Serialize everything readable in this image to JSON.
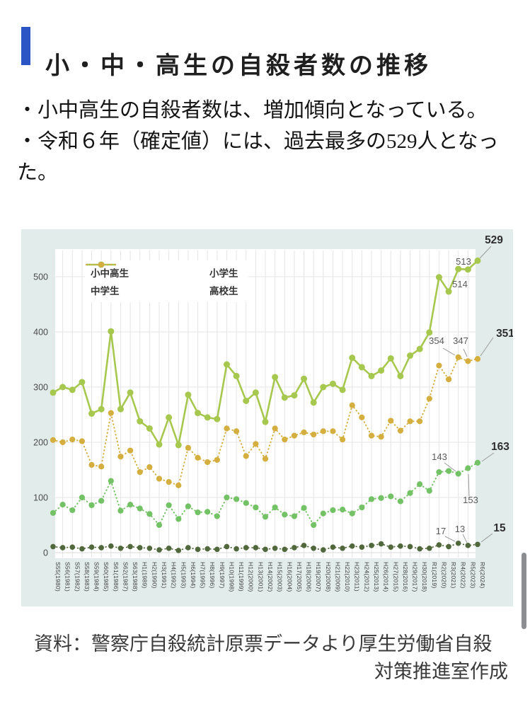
{
  "header": {
    "title": "小・中・高生の自殺者数の推移",
    "accent_color": "#2b54c5"
  },
  "summary": {
    "bullets": [
      "・小中高生の自殺者数は、増加傾向となっている。",
      "・令和６年（確定値）には、過去最多の529人となった。"
    ]
  },
  "source": {
    "line1": "資料：警察庁自殺統計原票データより厚生労働省自殺",
    "line2": "対策推進室作成"
  },
  "chart_data": {
    "type": "line",
    "panel_background": "#e2edeb",
    "plot_background": "#ffffff",
    "grid": true,
    "legend_position": "top-left",
    "ylim": [
      0,
      560
    ],
    "y_ticks": [
      0,
      100,
      200,
      300,
      400,
      500
    ],
    "x_labels": [
      "S55(1980)",
      "S56(1981)",
      "S57(1982)",
      "S58(1983)",
      "S59(1984)",
      "S60(1985)",
      "S61(1986)",
      "S62(1987)",
      "S63(1988)",
      "H1(1989)",
      "H2(1990)",
      "H3(1991)",
      "H4(1992)",
      "H5(1993)",
      "H6(1994)",
      "H7(1995)",
      "H8(1996)",
      "H9(1997)",
      "H10(1998)",
      "H11(1999)",
      "H12(2000)",
      "H13(2001)",
      "H14(2002)",
      "H15(2003)",
      "H16(2004)",
      "H17(2005)",
      "H18(2006)",
      "H19(2007)",
      "H20(2008)",
      "H21(2009)",
      "H22(2010)",
      "H23(2011)",
      "H24(2012)",
      "H25(2013)",
      "H26(2014)",
      "H27(2015)",
      "H28(2016)",
      "H29(2017)",
      "H30(2018)",
      "R1(2019)",
      "R2(2020)",
      "R3(2021)",
      "R4(2022)",
      "R5(2023)",
      "R6(2024)"
    ],
    "series": [
      {
        "id": "total",
        "name": "小中高生",
        "color": "#a7c84e",
        "style": "solid",
        "values": [
          290,
          300,
          295,
          309,
          252,
          260,
          401,
          260,
          290,
          238,
          225,
          196,
          245,
          195,
          286,
          253,
          245,
          242,
          341,
          320,
          275,
          290,
          237,
          318,
          281,
          285,
          315,
          272,
          300,
          306,
          295,
          353,
          336,
          320,
          330,
          352,
          320,
          357,
          369,
          399,
          499,
          473,
          514,
          513,
          529
        ]
      },
      {
        "id": "elementary",
        "name": "小学生",
        "color": "#50683b",
        "style": "dotted",
        "values": [
          11,
          9,
          10,
          7,
          10,
          9,
          12,
          8,
          11,
          9,
          8,
          5,
          8,
          4,
          9,
          6,
          7,
          6,
          11,
          7,
          9,
          9,
          6,
          8,
          6,
          9,
          13,
          8,
          5,
          10,
          8,
          12,
          10,
          13,
          16,
          10,
          12,
          11,
          7,
          8,
          14,
          11,
          17,
          13,
          15
        ]
      },
      {
        "id": "junior_high",
        "name": "中学生",
        "color": "#74c266",
        "style": "dotted",
        "values": [
          72,
          87,
          77,
          100,
          86,
          94,
          130,
          76,
          87,
          80,
          70,
          50,
          86,
          61,
          84,
          73,
          74,
          66,
          100,
          97,
          90,
          82,
          65,
          82,
          69,
          66,
          81,
          50,
          71,
          77,
          78,
          71,
          82,
          97,
          99,
          102,
          93,
          108,
          124,
          112,
          146,
          148,
          143,
          153,
          163
        ]
      },
      {
        "id": "high_school",
        "name": "高校生",
        "color": "#d4af3f",
        "style": "dotted",
        "values": [
          204,
          200,
          205,
          202,
          159,
          156,
          253,
          174,
          185,
          146,
          155,
          134,
          128,
          122,
          190,
          172,
          164,
          168,
          225,
          220,
          175,
          197,
          170,
          225,
          205,
          212,
          218,
          214,
          220,
          220,
          205,
          267,
          245,
          212,
          210,
          239,
          221,
          238,
          238,
          279,
          339,
          314,
          354,
          347,
          351
        ]
      }
    ],
    "annotations": [
      {
        "series": "total",
        "index": 42,
        "text": "514",
        "bold": false
      },
      {
        "series": "total",
        "index": 43,
        "text": "513",
        "bold": false
      },
      {
        "series": "total",
        "index": 44,
        "text": "529",
        "bold": true
      },
      {
        "series": "high_school",
        "index": 42,
        "text": "354",
        "bold": false
      },
      {
        "series": "high_school",
        "index": 43,
        "text": "347",
        "bold": false
      },
      {
        "series": "high_school",
        "index": 44,
        "text": "351",
        "bold": true
      },
      {
        "series": "junior_high",
        "index": 42,
        "text": "143",
        "bold": false
      },
      {
        "series": "junior_high",
        "index": 43,
        "text": "153",
        "bold": false
      },
      {
        "series": "junior_high",
        "index": 44,
        "text": "163",
        "bold": true
      },
      {
        "series": "elementary",
        "index": 42,
        "text": "17",
        "bold": false
      },
      {
        "series": "elementary",
        "index": 43,
        "text": "13",
        "bold": false
      },
      {
        "series": "elementary",
        "index": 44,
        "text": "15",
        "bold": true
      }
    ]
  }
}
